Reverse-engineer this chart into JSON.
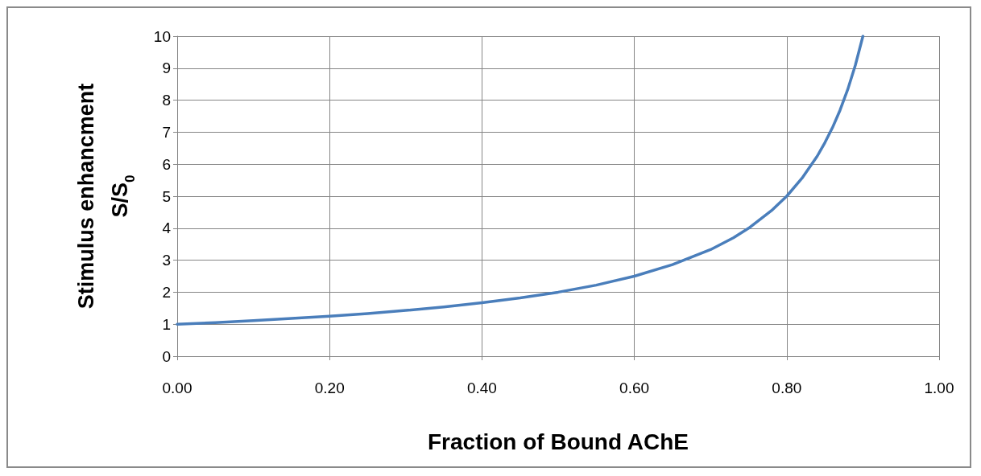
{
  "chart_data": {
    "type": "line",
    "xlabel": "Fraction of Bound AChE",
    "ylabel": "Stimulus enhancment\nS/S$_{0}$",
    "x": [
      0,
      0.05,
      0.1,
      0.15,
      0.2,
      0.25,
      0.3,
      0.35,
      0.4,
      0.45,
      0.5,
      0.55,
      0.6,
      0.65,
      0.7,
      0.73,
      0.75,
      0.78,
      0.8,
      0.82,
      0.84,
      0.85,
      0.86,
      0.87,
      0.88,
      0.89,
      0.9
    ],
    "series": [
      {
        "color": "#4a7ebb",
        "values": [
          1,
          1.05,
          1.11,
          1.18,
          1.25,
          1.33,
          1.43,
          1.54,
          1.67,
          1.82,
          2,
          2.22,
          2.5,
          2.86,
          3.33,
          3.7,
          4,
          4.55,
          5,
          5.56,
          6.25,
          6.67,
          7.14,
          7.69,
          8.33,
          9.09,
          10
        ]
      }
    ],
    "xlim": [
      0,
      1
    ],
    "xticks": [
      {
        "value": 0,
        "label": "0.00"
      },
      {
        "value": 0.2,
        "label": "0.20"
      },
      {
        "value": 0.4,
        "label": "0.40"
      },
      {
        "value": 0.6,
        "label": "0.60"
      },
      {
        "value": 0.8,
        "label": "0.80"
      },
      {
        "value": 1,
        "label": "1.00"
      }
    ],
    "ylim": [
      0,
      10
    ],
    "yticks": [
      0,
      1,
      2,
      3,
      4,
      5,
      6,
      7,
      8,
      9,
      10
    ],
    "grid": true,
    "marker": "none",
    "line_style": "solid"
  }
}
